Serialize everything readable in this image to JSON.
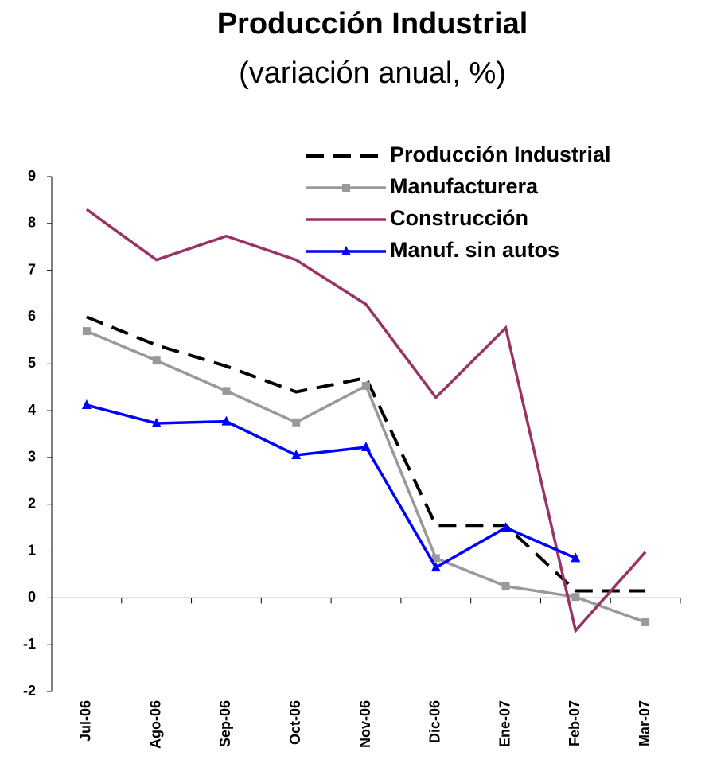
{
  "chart_data": {
    "type": "line",
    "title": "Producción Industrial",
    "subtitle": "(variación anual, %)",
    "categories": [
      "Jul-06",
      "Ago-06",
      "Sep-06",
      "Oct-06",
      "Nov-06",
      "Dic-06",
      "Ene-07",
      "Feb-07",
      "Mar-07"
    ],
    "series": [
      {
        "name": "Producción Industrial",
        "color": "#000000",
        "dash": true,
        "marker": "none",
        "values": [
          6.0,
          5.4,
          4.95,
          4.4,
          4.7,
          1.55,
          1.55,
          0.15,
          0.15
        ]
      },
      {
        "name": "Manufacturera",
        "color": "#999999",
        "dash": false,
        "marker": "square",
        "values": [
          5.7,
          5.07,
          4.42,
          3.75,
          4.53,
          0.85,
          0.25,
          0.02,
          -0.52
        ]
      },
      {
        "name": "Construcción",
        "color": "#993366",
        "dash": false,
        "marker": "none",
        "values": [
          8.3,
          7.22,
          7.73,
          7.22,
          6.27,
          4.28,
          5.77,
          -0.7,
          0.98
        ]
      },
      {
        "name": "Manuf. sin autos",
        "color": "#0000ff",
        "dash": false,
        "marker": "triangle",
        "values": [
          4.12,
          3.73,
          3.77,
          3.05,
          3.22,
          0.65,
          1.5,
          0.85,
          null
        ]
      }
    ],
    "ylim": [
      -2,
      9
    ],
    "yticks": [
      -2,
      -1,
      0,
      1,
      2,
      3,
      4,
      5,
      6,
      7,
      8,
      9
    ],
    "legend": "top-right"
  }
}
